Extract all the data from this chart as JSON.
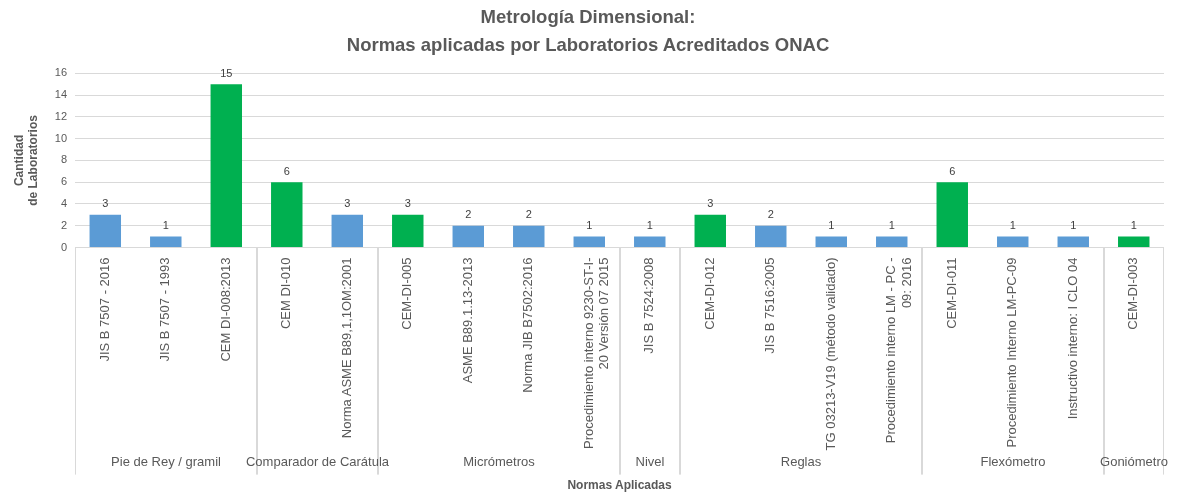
{
  "chart_data": {
    "type": "bar",
    "title": "Metrología Dimensional:",
    "subtitle": "Normas aplicadas por Laboratorios Acreditados ONAC",
    "xlabel": "Normas Aplicadas",
    "ylabel": "Cantidad de Laboratorios",
    "categories": [
      "JIS B 7507 - 2016",
      "JIS B 7507 - 1993",
      "CEM DI-008:2013",
      "CEM DI-010",
      "Norma ASME B89,1,1OM:2001",
      "CEM-DI-005",
      "ASME B89.1.13-2013",
      "Norma JIB B7502:2016",
      "Procedimiento interno 9230-ST-I-20 Versión 07 2015",
      "JIS B 7524:2008",
      "CEM-DI-012",
      "JIS B 7516:2005",
      "TG 03213-V19 (método validado)",
      "Procedimiento interno LM - PC - 09: 2016",
      "CEM-DI-011",
      "Procedimiento Interno LM-PC-09",
      "Instructivo interno: I CLO 04",
      "CEM-DI-003"
    ],
    "values": [
      3,
      1,
      15,
      6,
      3,
      3,
      2,
      2,
      1,
      1,
      3,
      2,
      1,
      1,
      6,
      1,
      1,
      1
    ],
    "colors": [
      "#5b9bd5",
      "#5b9bd5",
      "#00b050",
      "#00b050",
      "#5b9bd5",
      "#00b050",
      "#5b9bd5",
      "#5b9bd5",
      "#5b9bd5",
      "#5b9bd5",
      "#00b050",
      "#5b9bd5",
      "#5b9bd5",
      "#5b9bd5",
      "#00b050",
      "#5b9bd5",
      "#5b9bd5",
      "#00b050"
    ],
    "ylim": [
      0,
      16
    ],
    "yticks": [
      0,
      2,
      4,
      6,
      8,
      10,
      12,
      14,
      16
    ],
    "grid": "y",
    "data_labels": true,
    "annotations": [
      "Pie de Rey / gramil",
      "Comparador de Carátula",
      "Micrómetros",
      "Nivel",
      "Reglas",
      "Flexómetro",
      "Goniómetro"
    ]
  }
}
